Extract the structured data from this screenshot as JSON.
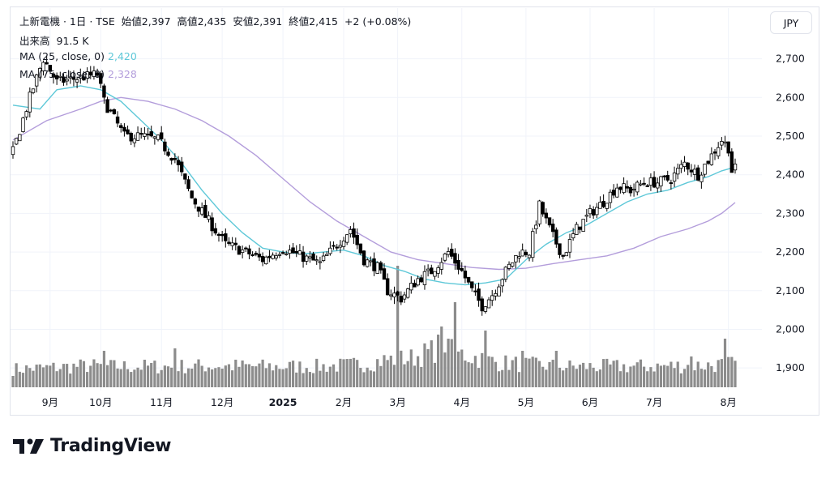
{
  "header": {
    "symbol_line": "上新電機 · 1日 · TSE",
    "open_label": "始値",
    "open_value": "2,397",
    "high_label": "高値",
    "high_value": "2,435",
    "low_label": "安値",
    "low_value": "2,391",
    "close_label": "終値",
    "close_value": "2,415",
    "change": "+2 (+0.08%)",
    "volume_label": "出来高",
    "volume_value": "91.5 K",
    "ma25_label": "MA (25, close, 0)",
    "ma25_value": "2,420",
    "ma75_label": "MA (75, close, 0)",
    "ma75_value": "2,328"
  },
  "currency_button": "JPY",
  "brand": "TradingView",
  "colors": {
    "up": "#ffffff",
    "down": "#000000",
    "wick": "#000000",
    "ma25": "#5ec8d8",
    "ma75": "#b39ddb",
    "volume": "#8c8c8c",
    "grid": "#f0f3fa"
  },
  "chart_data": {
    "type": "candlestick",
    "ylim": [
      1850,
      2760
    ],
    "y_ticks": [
      "2,700",
      "2,600",
      "2,500",
      "2,400",
      "2,300",
      "2,200",
      "2,100",
      "2,000",
      "1,900"
    ],
    "y_tick_values": [
      2700,
      2600,
      2500,
      2400,
      2300,
      2200,
      2100,
      2000,
      1900
    ],
    "x_ticks": [
      "9月",
      "10月",
      "11月",
      "12月",
      "2025",
      "2月",
      "3月",
      "4月",
      "5月",
      "6月",
      "7月",
      "8月"
    ],
    "x_tick_index": [
      11,
      26,
      44,
      62,
      80,
      98,
      114,
      133,
      152,
      171,
      190,
      212
    ],
    "price_anchors": [
      [
        0,
        2460
      ],
      [
        5,
        2600
      ],
      [
        9,
        2700
      ],
      [
        13,
        2640
      ],
      [
        19,
        2650
      ],
      [
        25,
        2660
      ],
      [
        27,
        2590
      ],
      [
        33,
        2500
      ],
      [
        38,
        2500
      ],
      [
        43,
        2490
      ],
      [
        48,
        2440
      ],
      [
        53,
        2340
      ],
      [
        58,
        2280
      ],
      [
        63,
        2220
      ],
      [
        69,
        2200
      ],
      [
        74,
        2180
      ],
      [
        80,
        2210
      ],
      [
        85,
        2190
      ],
      [
        91,
        2170
      ],
      [
        96,
        2220
      ],
      [
        100,
        2260
      ],
      [
        104,
        2180
      ],
      [
        108,
        2160
      ],
      [
        111,
        2100
      ],
      [
        115,
        2080
      ],
      [
        120,
        2130
      ],
      [
        124,
        2150
      ],
      [
        129,
        2200
      ],
      [
        133,
        2150
      ],
      [
        136,
        2100
      ],
      [
        139,
        2060
      ],
      [
        142,
        2090
      ],
      [
        146,
        2150
      ],
      [
        150,
        2200
      ],
      [
        153,
        2200
      ],
      [
        156,
        2320
      ],
      [
        160,
        2240
      ],
      [
        163,
        2190
      ],
      [
        167,
        2260
      ],
      [
        171,
        2300
      ],
      [
        175,
        2330
      ],
      [
        179,
        2370
      ],
      [
        183,
        2360
      ],
      [
        187,
        2380
      ],
      [
        191,
        2380
      ],
      [
        195,
        2390
      ],
      [
        199,
        2430
      ],
      [
        203,
        2400
      ],
      [
        207,
        2450
      ],
      [
        210,
        2490
      ],
      [
        212,
        2470
      ],
      [
        213,
        2410
      ],
      [
        214,
        2415
      ]
    ],
    "volume_anchors": [
      [
        0,
        28
      ],
      [
        10,
        30
      ],
      [
        22,
        33
      ],
      [
        30,
        32
      ],
      [
        45,
        32
      ],
      [
        60,
        33
      ],
      [
        75,
        32
      ],
      [
        90,
        32
      ],
      [
        100,
        34
      ],
      [
        106,
        38
      ],
      [
        110,
        42
      ],
      [
        118,
        45
      ],
      [
        124,
        55
      ],
      [
        128,
        70
      ],
      [
        130,
        55
      ],
      [
        134,
        50
      ],
      [
        138,
        45
      ],
      [
        144,
        38
      ],
      [
        150,
        36
      ],
      [
        155,
        34
      ],
      [
        165,
        32
      ],
      [
        175,
        32
      ],
      [
        185,
        32
      ],
      [
        195,
        33
      ],
      [
        205,
        34
      ],
      [
        214,
        36
      ]
    ],
    "volume_spikes": [
      [
        114,
        150
      ],
      [
        131,
        105
      ],
      [
        129,
        60
      ],
      [
        127,
        75
      ],
      [
        27,
        45
      ],
      [
        48,
        48
      ],
      [
        151,
        45
      ],
      [
        140,
        70
      ],
      [
        161,
        45
      ],
      [
        201,
        38
      ],
      [
        211,
        60
      ]
    ],
    "ma25": [
      [
        0,
        2580
      ],
      [
        8,
        2570
      ],
      [
        13,
        2620
      ],
      [
        20,
        2630
      ],
      [
        26,
        2620
      ],
      [
        32,
        2590
      ],
      [
        38,
        2540
      ],
      [
        44,
        2490
      ],
      [
        50,
        2430
      ],
      [
        56,
        2360
      ],
      [
        62,
        2300
      ],
      [
        68,
        2250
      ],
      [
        74,
        2210
      ],
      [
        80,
        2200
      ],
      [
        86,
        2195
      ],
      [
        92,
        2200
      ],
      [
        98,
        2205
      ],
      [
        104,
        2190
      ],
      [
        110,
        2165
      ],
      [
        116,
        2150
      ],
      [
        122,
        2130
      ],
      [
        128,
        2120
      ],
      [
        134,
        2115
      ],
      [
        140,
        2120
      ],
      [
        146,
        2130
      ],
      [
        152,
        2180
      ],
      [
        158,
        2220
      ],
      [
        164,
        2250
      ],
      [
        170,
        2270
      ],
      [
        176,
        2300
      ],
      [
        182,
        2330
      ],
      [
        188,
        2350
      ],
      [
        194,
        2360
      ],
      [
        200,
        2380
      ],
      [
        206,
        2395
      ],
      [
        210,
        2410
      ],
      [
        214,
        2420
      ]
    ],
    "ma75": [
      [
        0,
        2490
      ],
      [
        10,
        2540
      ],
      [
        20,
        2570
      ],
      [
        26,
        2590
      ],
      [
        32,
        2600
      ],
      [
        40,
        2590
      ],
      [
        48,
        2570
      ],
      [
        56,
        2540
      ],
      [
        64,
        2500
      ],
      [
        72,
        2450
      ],
      [
        80,
        2390
      ],
      [
        88,
        2330
      ],
      [
        96,
        2280
      ],
      [
        104,
        2240
      ],
      [
        112,
        2200
      ],
      [
        120,
        2180
      ],
      [
        128,
        2170
      ],
      [
        136,
        2160
      ],
      [
        144,
        2155
      ],
      [
        152,
        2158
      ],
      [
        160,
        2170
      ],
      [
        168,
        2180
      ],
      [
        176,
        2190
      ],
      [
        184,
        2210
      ],
      [
        192,
        2240
      ],
      [
        200,
        2260
      ],
      [
        206,
        2280
      ],
      [
        210,
        2300
      ],
      [
        214,
        2328
      ]
    ]
  }
}
